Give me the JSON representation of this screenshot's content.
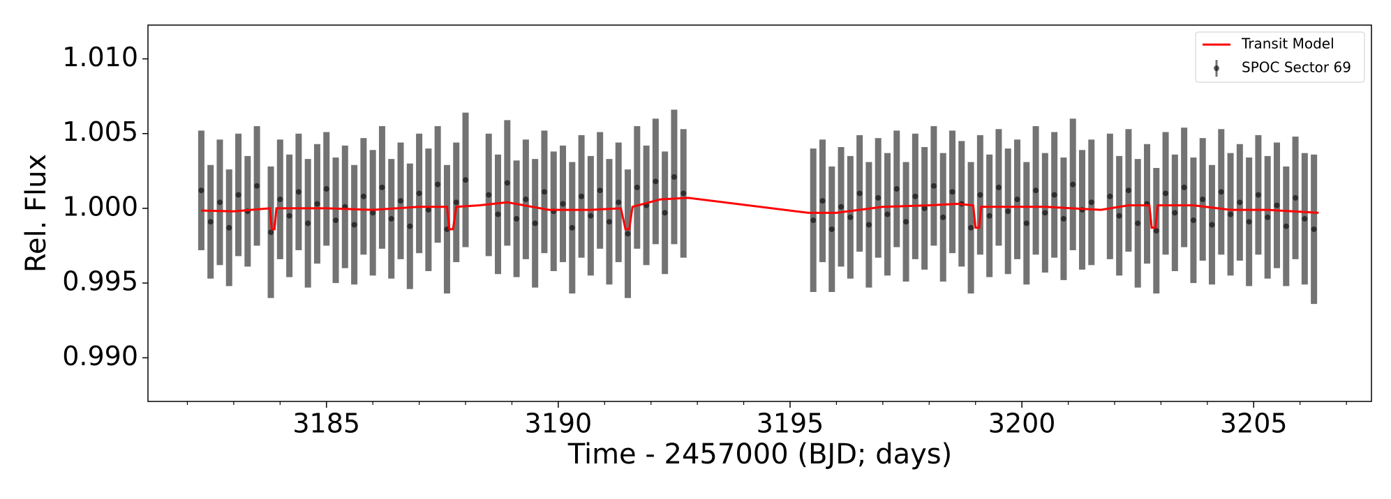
{
  "chart_data": {
    "type": "errorbar",
    "xlabel": "Time - 2457000 (BJD; days)",
    "ylabel": "Rel. Flux",
    "xlim": [
      3181.15,
      3207.54
    ],
    "ylim": [
      0.98708,
      1.01226
    ],
    "xticks": [
      3185,
      3190,
      3195,
      3200,
      3205
    ],
    "xminorticks": [
      3182,
      3183,
      3184,
      3186,
      3187,
      3188,
      3189,
      3191,
      3192,
      3193,
      3194,
      3196,
      3197,
      3198,
      3199,
      3201,
      3202,
      3203,
      3204,
      3206,
      3207
    ],
    "yticks": [
      {
        "value": 0.99,
        "label": "0.990"
      },
      {
        "value": 0.995,
        "label": "0.995"
      },
      {
        "value": 1.0,
        "label": "1.000"
      },
      {
        "value": 1.005,
        "label": "1.005"
      },
      {
        "value": 1.01,
        "label": "1.010"
      }
    ],
    "legend": "upper right",
    "series": [
      {
        "name": "SPOC Sector 69",
        "color": "#000000",
        "x": [
          3182.3,
          3182.5,
          3182.7,
          3182.9,
          3183.1,
          3183.3,
          3183.5,
          3183.8,
          3184.0,
          3184.2,
          3184.4,
          3184.6,
          3184.8,
          3185.0,
          3185.2,
          3185.4,
          3185.6,
          3185.8,
          3186.0,
          3186.2,
          3186.4,
          3186.6,
          3186.8,
          3187.0,
          3187.2,
          3187.4,
          3187.6,
          3187.8,
          3188.0,
          3188.5,
          3188.7,
          3188.9,
          3189.1,
          3189.3,
          3189.5,
          3189.7,
          3189.9,
          3190.1,
          3190.3,
          3190.5,
          3190.7,
          3190.9,
          3191.1,
          3191.3,
          3191.5,
          3191.7,
          3191.9,
          3192.1,
          3192.3,
          3192.5,
          3192.7,
          3195.5,
          3195.7,
          3195.9,
          3196.1,
          3196.3,
          3196.5,
          3196.7,
          3196.9,
          3197.1,
          3197.3,
          3197.5,
          3197.7,
          3197.9,
          3198.1,
          3198.3,
          3198.5,
          3198.7,
          3198.9,
          3199.1,
          3199.3,
          3199.5,
          3199.7,
          3199.9,
          3200.1,
          3200.3,
          3200.5,
          3200.7,
          3200.9,
          3201.1,
          3201.3,
          3201.5,
          3201.9,
          3202.1,
          3202.3,
          3202.5,
          3202.7,
          3202.9,
          3203.1,
          3203.3,
          3203.5,
          3203.7,
          3203.9,
          3204.1,
          3204.3,
          3204.5,
          3204.7,
          3204.9,
          3205.1,
          3205.3,
          3205.5,
          3205.7,
          3205.9,
          3206.1,
          3206.3
        ],
        "values": [
          1.0012,
          0.9991,
          1.0004,
          0.9987,
          1.0009,
          0.9998,
          1.0015,
          0.9984,
          1.0006,
          0.9995,
          1.0011,
          0.999,
          1.0003,
          1.0013,
          0.9992,
          1.0001,
          0.9989,
          1.0008,
          0.9997,
          1.0014,
          0.9993,
          1.0005,
          0.9988,
          1.001,
          0.9999,
          1.0016,
          0.9986,
          1.0004,
          1.0019,
          1.0009,
          0.9996,
          1.0017,
          0.9993,
          1.0006,
          0.999,
          1.0011,
          0.9998,
          1.0003,
          0.9987,
          1.0008,
          0.9995,
          1.0012,
          0.9991,
          1.0004,
          0.9983,
          1.0014,
          1.0002,
          1.0018,
          0.9997,
          1.0021,
          1.001,
          0.9992,
          1.0005,
          0.9986,
          1.0001,
          0.9994,
          1.001,
          0.9989,
          1.0007,
          0.9996,
          1.0013,
          0.9991,
          1.0008,
          1.0,
          1.0015,
          0.9994,
          1.0011,
          1.0003,
          0.9987,
          1.0009,
          0.9995,
          1.0014,
          0.9998,
          1.0006,
          0.999,
          1.0012,
          0.9997,
          1.0009,
          0.9993,
          1.0016,
          0.9999,
          1.0004,
          1.0008,
          0.9995,
          1.0012,
          0.999,
          1.0003,
          0.9985,
          1.001,
          0.9997,
          1.0014,
          0.9992,
          1.0006,
          0.9989,
          1.0011,
          0.9996,
          1.0004,
          0.9991,
          1.0009,
          0.9994,
          1.0002,
          0.9988,
          1.0007,
          0.9993,
          0.9986
        ],
        "errors": [
          0.004,
          0.0038,
          0.0042,
          0.0039,
          0.0041,
          0.0037,
          0.004,
          0.0044,
          0.004,
          0.0041,
          0.0039,
          0.0043,
          0.004,
          0.0038,
          0.0042,
          0.0041,
          0.004,
          0.0039,
          0.0042,
          0.0041,
          0.004,
          0.0039,
          0.0042,
          0.004,
          0.0041,
          0.0039,
          0.0043,
          0.004,
          0.0045,
          0.0041,
          0.004,
          0.0042,
          0.0039,
          0.004,
          0.0043,
          0.0041,
          0.004,
          0.0039,
          0.0044,
          0.0041,
          0.004,
          0.0039,
          0.0042,
          0.004,
          0.0043,
          0.0041,
          0.004,
          0.0042,
          0.0041,
          0.0045,
          0.0043,
          0.0048,
          0.0041,
          0.0042,
          0.004,
          0.0041,
          0.0039,
          0.0042,
          0.004,
          0.0041,
          0.0039,
          0.004,
          0.0042,
          0.0041,
          0.004,
          0.0043,
          0.0041,
          0.0042,
          0.0044,
          0.004,
          0.0041,
          0.0039,
          0.0042,
          0.004,
          0.0041,
          0.0043,
          0.004,
          0.0042,
          0.0041,
          0.0044,
          0.004,
          0.0042,
          0.0042,
          0.004,
          0.0041,
          0.0043,
          0.004,
          0.0042,
          0.0041,
          0.0039,
          0.004,
          0.0042,
          0.0041,
          0.004,
          0.0042,
          0.0041,
          0.0039,
          0.0043,
          0.004,
          0.0041,
          0.0042,
          0.004,
          0.0041,
          0.0044,
          0.005
        ]
      },
      {
        "name": "Transit Model",
        "color": "#ff0000",
        "x": [
          3182.3,
          3183.0,
          3183.78,
          3183.82,
          3183.88,
          3183.92,
          3185.0,
          3186.0,
          3187.0,
          3187.6,
          3187.65,
          3187.73,
          3187.8,
          3188.3,
          3188.9,
          3189.8,
          3190.7,
          3191.35,
          3191.45,
          3191.53,
          3191.6,
          3192.2,
          3192.8,
          3195.4,
          3196.0,
          3197.0,
          3198.0,
          3198.6,
          3198.95,
          3199.0,
          3199.08,
          3199.12,
          3200.5,
          3201.7,
          3202.3,
          3202.75,
          3202.8,
          3202.88,
          3202.93,
          3203.7,
          3204.5,
          3205.3,
          3206.4
        ],
        "values": [
          0.99985,
          0.9998,
          1.0,
          0.9986,
          0.9986,
          1.0,
          1.0,
          0.9999,
          1.0001,
          1.0001,
          0.9986,
          0.9986,
          1.0001,
          1.0002,
          1.0004,
          0.9999,
          0.9999,
          1.0,
          0.9986,
          0.9986,
          1.0001,
          1.0006,
          1.0007,
          0.9997,
          0.9997,
          1.0001,
          1.0002,
          1.0003,
          1.0002,
          0.9987,
          0.9987,
          1.0001,
          1.0001,
          0.9999,
          1.0002,
          1.0002,
          0.9987,
          0.9987,
          1.0002,
          1.0002,
          0.9999,
          0.9999,
          0.9997
        ]
      }
    ]
  }
}
